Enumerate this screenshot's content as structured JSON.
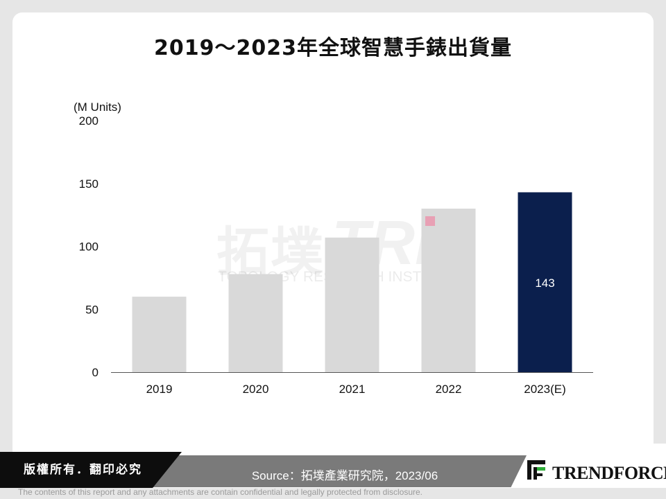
{
  "title": "2019～2023年全球智慧手錶出貨量",
  "chart_data": {
    "type": "bar",
    "title": "2019～2023年全球智慧手錶出貨量",
    "ylabel": "(M Units)",
    "xlabel": "",
    "categories": [
      "2019",
      "2020",
      "2021",
      "2022",
      "2023(E)"
    ],
    "values": [
      60,
      78,
      107,
      130,
      143
    ],
    "data_labels": [
      "",
      "",
      "",
      "",
      "143"
    ],
    "ylim": [
      0,
      200
    ],
    "yticks": [
      0,
      50,
      100,
      150,
      200
    ],
    "grid": false,
    "colors": {
      "default": "#d9d9d9",
      "highlight": "#0b1f4d",
      "label": "#ffffff"
    },
    "highlight_index": 4
  },
  "watermark": {
    "cn": "拓墣",
    "abbr": "TRI",
    "en": "TOPOLOGY RESEARCH INSTITUTE"
  },
  "footer": {
    "copyright": "版權所有．翻印必究",
    "source": "Source：拓墣產業研究院，2023/06",
    "logo": "TRENDFORCE",
    "disclaimer": "The contents of this report and any attachments are contain confidential and legally protected from disclosure."
  }
}
